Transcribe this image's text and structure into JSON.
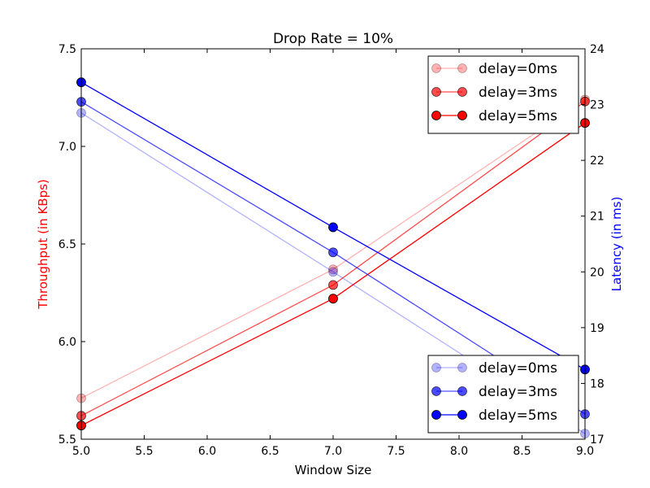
{
  "chart_data": {
    "type": "line",
    "title": "Drop Rate = 10%",
    "xlabel": "Window Size",
    "ylabel_left": "Throughput (in KBps)",
    "ylabel_right": "Latency (in ms)",
    "xlim": [
      5.0,
      9.0
    ],
    "ylim_left": [
      5.5,
      7.5
    ],
    "ylim_right": [
      17,
      24
    ],
    "x_ticks": [
      "5.0",
      "5.5",
      "6.0",
      "6.5",
      "7.0",
      "7.5",
      "8.0",
      "8.5",
      "9.0"
    ],
    "y_left_ticks": [
      "5.5",
      "6.0",
      "6.5",
      "7.0",
      "7.5"
    ],
    "y_right_ticks": [
      "17",
      "18",
      "19",
      "20",
      "21",
      "22",
      "23",
      "24"
    ],
    "x": [
      5,
      7,
      9
    ],
    "left_color": "#ff0000",
    "right_color": "#0000ff",
    "left_series": [
      {
        "name": "delay=0ms",
        "values": [
          5.71,
          6.37,
          7.24
        ],
        "alpha": 0.3
      },
      {
        "name": "delay=3ms",
        "values": [
          5.62,
          6.29,
          7.23
        ],
        "alpha": 0.7
      },
      {
        "name": "delay=5ms",
        "values": [
          5.57,
          6.22,
          7.12
        ],
        "alpha": 1.0
      }
    ],
    "right_series": [
      {
        "name": "delay=0ms",
        "values": [
          22.85,
          20.0,
          17.1
        ],
        "alpha": 0.3
      },
      {
        "name": "delay=3ms",
        "values": [
          23.05,
          20.35,
          17.45
        ],
        "alpha": 0.7
      },
      {
        "name": "delay=5ms",
        "values": [
          23.4,
          20.8,
          18.25
        ],
        "alpha": 1.0
      }
    ],
    "legend_left_placement": "top-right",
    "legend_right_placement": "bottom-right",
    "grid": false
  }
}
